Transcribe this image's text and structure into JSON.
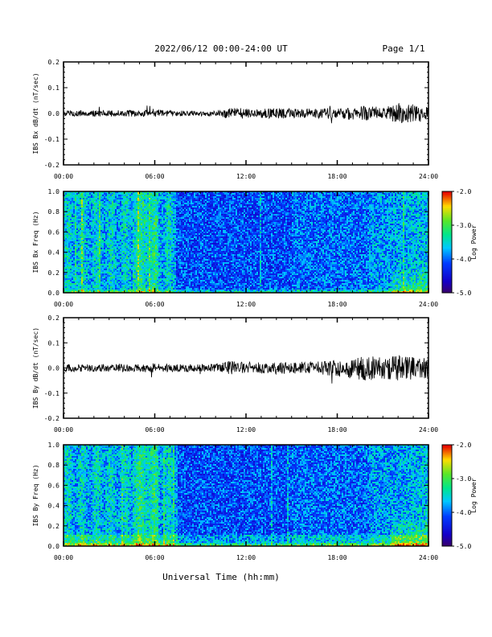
{
  "header": {
    "title": "2022/06/12  00:00-24:00 UT",
    "page": "Page 1/1"
  },
  "xaxis": {
    "title": "Universal Time (hh:mm)",
    "ticks": [
      "00:00",
      "06:00",
      "12:00",
      "18:00",
      "24:00"
    ],
    "range_hours": [
      0,
      24
    ]
  },
  "chart_data": [
    {
      "type": "line",
      "ylabel": "IBS Bx dB/dt (nT/sec)",
      "ylim": [
        -0.2,
        0.2
      ],
      "yticks": [
        "0.2",
        "0.1",
        "0.0",
        "-0.1",
        "-0.2"
      ],
      "series": [
        {
          "x": [
            0,
            2,
            4,
            6,
            8,
            10,
            11,
            12,
            13,
            14,
            16,
            18,
            19,
            20,
            21,
            22,
            23,
            24
          ],
          "envelope": [
            0.01,
            0.012,
            0.012,
            0.015,
            0.01,
            0.01,
            0.022,
            0.02,
            0.018,
            0.02,
            0.018,
            0.022,
            0.025,
            0.03,
            0.022,
            0.04,
            0.035,
            0.03
          ]
        }
      ]
    },
    {
      "type": "heatmap",
      "ylabel": "IBS Bx Freq (Hz)",
      "ylim": [
        0.0,
        1.0
      ],
      "yticks": [
        "1.0",
        "0.8",
        "0.6",
        "0.4",
        "0.2",
        "0.0"
      ],
      "colorbar": {
        "label": "Log Power",
        "range": [
          -5.0,
          -2.0
        ],
        "ticks": [
          "-2.0",
          "-3.0",
          "-4.0",
          "-5.0"
        ]
      }
    },
    {
      "type": "line",
      "ylabel": "IBS By dB/dt (nT/sec)",
      "ylim": [
        -0.2,
        0.2
      ],
      "yticks": [
        "0.2",
        "0.1",
        "0.0",
        "-0.1",
        "-0.2"
      ],
      "series": [
        {
          "x": [
            0,
            2,
            4,
            6,
            8,
            10,
            11,
            12,
            13,
            14,
            16,
            18,
            19,
            20,
            21,
            22,
            23,
            24
          ],
          "envelope": [
            0.015,
            0.015,
            0.015,
            0.018,
            0.015,
            0.015,
            0.03,
            0.025,
            0.022,
            0.025,
            0.022,
            0.035,
            0.045,
            0.05,
            0.045,
            0.05,
            0.045,
            0.04
          ]
        }
      ]
    },
    {
      "type": "heatmap",
      "ylabel": "IBS By Freq (Hz)",
      "ylim": [
        0.0,
        1.0
      ],
      "yticks": [
        "1.0",
        "0.8",
        "0.6",
        "0.4",
        "0.2",
        "0.0"
      ],
      "colorbar": {
        "label": "Log Power",
        "range": [
          -5.0,
          -2.0
        ],
        "ticks": [
          "-2.0",
          "-3.0",
          "-4.0",
          "-5.0"
        ]
      }
    }
  ]
}
